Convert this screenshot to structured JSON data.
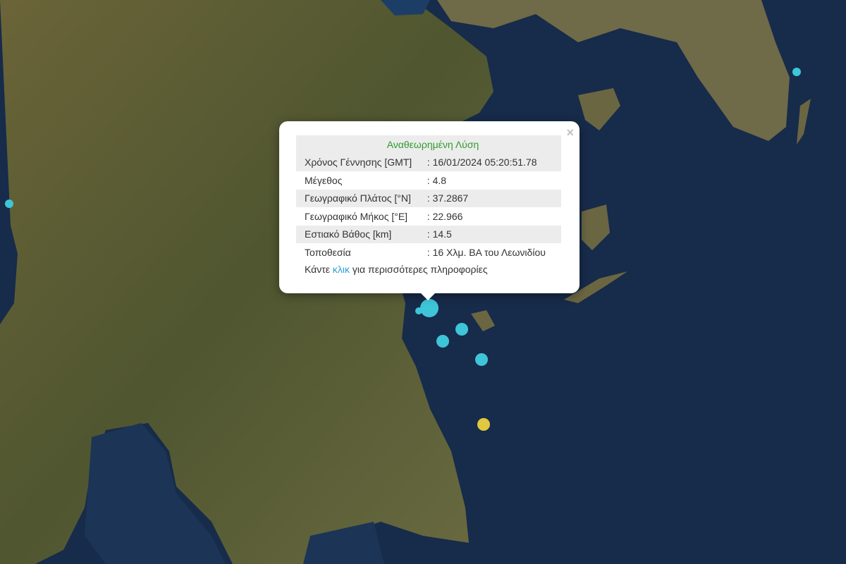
{
  "map": {
    "colors": {
      "sea": "#172b4a",
      "land": "#5d5a34",
      "marker": "#3ec5d8",
      "marker_alt": "#e0c840"
    },
    "markers": [
      {
        "lat_label": "37.2867",
        "lon_label": "22.966",
        "magnitude": "4.8",
        "selected": true,
        "color": "marker"
      }
    ]
  },
  "popup": {
    "title": "Αναθεωρημένη Λύση",
    "close_icon": "×",
    "rows": [
      {
        "label": "Χρόνος Γέννησης [GMT]",
        "value": ": 16/01/2024 05:20:51.78"
      },
      {
        "label": "Μέγεθος",
        "value": ": 4.8"
      },
      {
        "label": "Γεωγραφικό Πλάτος [°N]",
        "value": ": 37.2867"
      },
      {
        "label": "Γεωγραφικό Μήκος [°E]",
        "value": ": 22.966"
      },
      {
        "label": "Εστιακό Βάθος [km]",
        "value": ": 14.5"
      },
      {
        "label": "Τοποθεσία",
        "value": ": 16 Χλμ. ΒΑ του Λεωνιδίου"
      }
    ],
    "more_prefix": "Κάντε ",
    "more_link": "κλικ",
    "more_suffix": " για περισσότερες πληροφορίες"
  }
}
